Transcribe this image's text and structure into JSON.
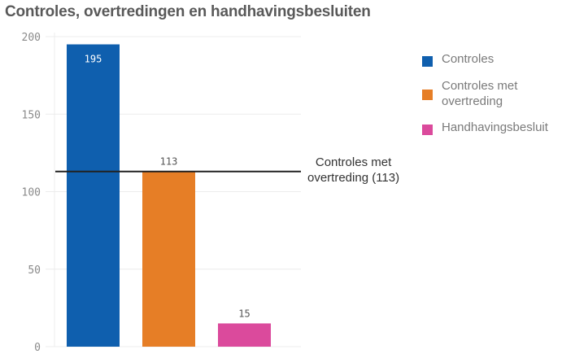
{
  "chart_data": {
    "type": "bar",
    "title": "Controles, overtredingen en handhavingsbesluiten",
    "categories": [
      "Controles",
      "Controles met overtreding",
      "Handhavingsbesluit"
    ],
    "values": [
      195,
      113,
      15
    ],
    "colors": [
      "#0f5fae",
      "#e67e26",
      "#db4a9c"
    ],
    "ylim": [
      0,
      200
    ],
    "yticks": [
      "0",
      "50",
      "100",
      "150",
      "200"
    ],
    "ytick_values": [
      0,
      50,
      100,
      150,
      200
    ],
    "grid": true,
    "legend": {
      "position": "right",
      "entries": [
        "Controles",
        "Controles met overtreding",
        "Handhavingsbesluit"
      ]
    },
    "reference_line": {
      "value": 113,
      "label_line1": "Controles met",
      "label_line2": "overtreding (113)",
      "color": "#222222"
    }
  }
}
